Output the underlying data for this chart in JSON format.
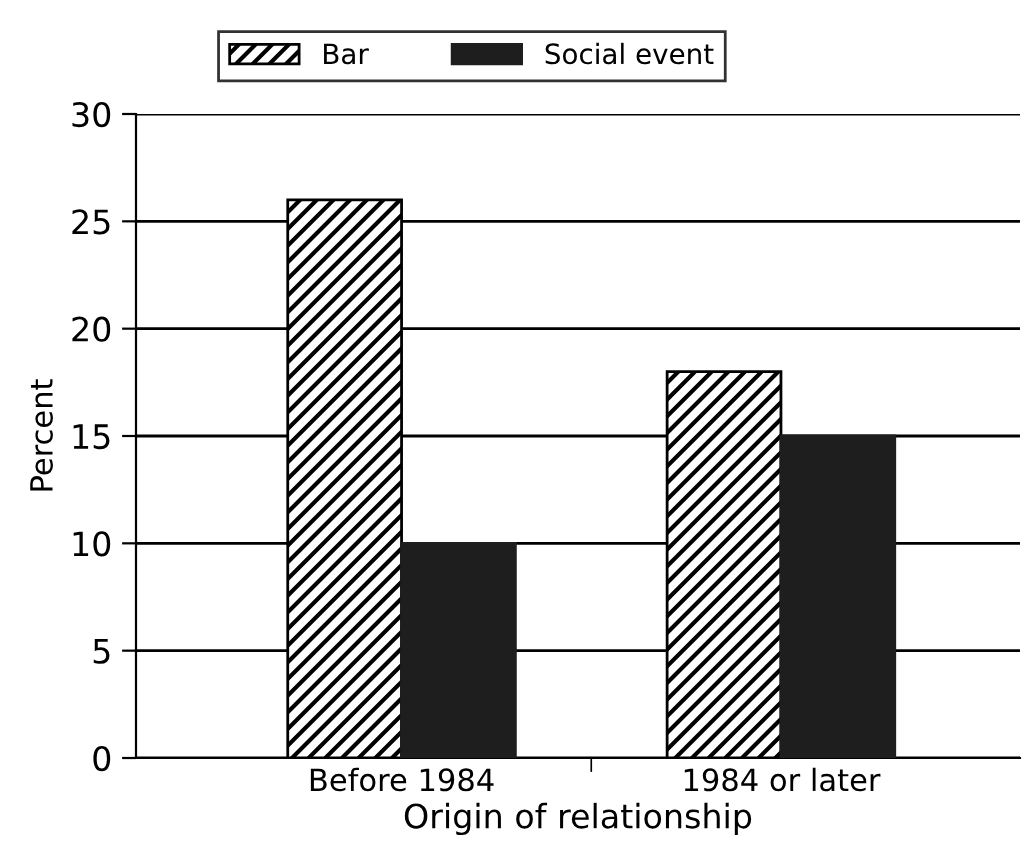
{
  "chart_data": {
    "type": "bar",
    "xlabel": "Origin of relationship",
    "ylabel": "Percent",
    "categories": [
      "Before 1984",
      "1984 or later"
    ],
    "series": [
      {
        "name": "Bar",
        "color": "#000000",
        "values": [
          26,
          18
        ]
      },
      {
        "name": "Social event",
        "color": "#1e1e1e",
        "values": [
          10,
          15
        ]
      }
    ],
    "ylim": [
      0,
      30
    ],
    "yticks": [
      0,
      5,
      10,
      15,
      20,
      25,
      30
    ],
    "grid": "y",
    "legend": "top"
  }
}
